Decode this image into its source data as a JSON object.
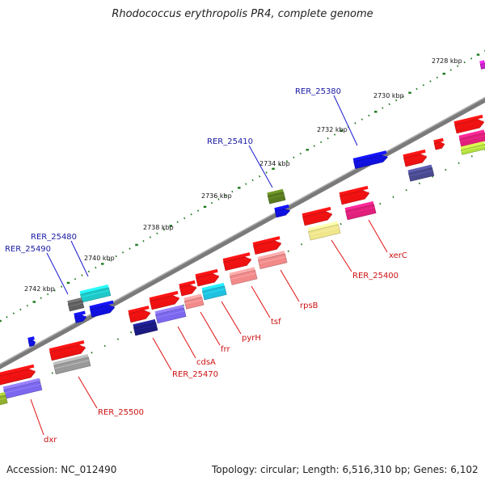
{
  "title": "Rhodococcus erythropolis PR4, complete genome",
  "footer": {
    "accession": "Accession: NC_012490",
    "summary": "Topology: circular; Length: 6,516,310 bp; Genes: 6,102"
  },
  "kbp_labels": [
    "2728 kbp",
    "2730 kbp",
    "2732 kbp",
    "2734 kbp",
    "2736 kbp",
    "2738 kbp",
    "2740 kbp",
    "2742 kbp"
  ],
  "upper_gene_labels": [
    "RER_25380",
    "RER_25410",
    "RER_25480",
    "RER_25490"
  ],
  "lower_gene_labels": [
    "xerC",
    "RER_25400",
    "rpsB",
    "tsf",
    "pyrH",
    "frr",
    "cdsA",
    "RER_25470",
    "RER_25500",
    "dxr"
  ],
  "colors": {
    "backbone": "#7a7a7a",
    "tick": "#1e7a1e",
    "upper_label": "#1a1aa6",
    "lower_label": "#cc1111",
    "red": "#ee1111",
    "pink": "#f28a8a",
    "magenta": "#e0207a",
    "khaki": "#f0e68c",
    "slate": "#7b68ee",
    "navy": "#1a1a80",
    "cyan": "#20c0e0",
    "teal": "#20c8c8",
    "blue": "#1010dd",
    "olive": "#5a7a20",
    "gray": "#9a9a9a",
    "dimgray": "#606060",
    "lime": "#b0e040"
  }
}
